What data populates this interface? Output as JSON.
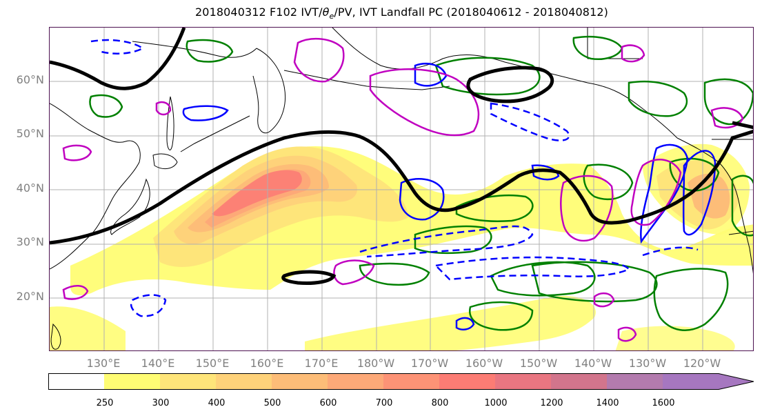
{
  "title": {
    "prefix": "2018040312 F102 IVT/",
    "theta_symbol": "θ",
    "theta_subscript": "e",
    "suffix": "/PV, IVT Landfall PC (2018040612 - 2018040812)"
  },
  "map": {
    "lat_labels": [
      "60°N",
      "50°N",
      "40°N",
      "30°N",
      "20°N"
    ],
    "lon_labels": [
      "130°E",
      "140°E",
      "150°E",
      "160°E",
      "170°E",
      "180°W",
      "170°W",
      "160°W",
      "150°W",
      "140°W",
      "130°W",
      "120°W"
    ],
    "colors": {
      "pv_contour": "#000000",
      "theta_positive": "#008000",
      "theta_negative_dashed": "#0000ff",
      "landfall_pc": "#c000c0",
      "coastline": "#000000",
      "grid": "#b0b0b0"
    }
  },
  "colorbar": {
    "ticks": [
      "250",
      "300",
      "400",
      "500",
      "600",
      "700",
      "800",
      "1000",
      "1200",
      "1400",
      "1600"
    ],
    "levels": [
      0,
      250,
      300,
      400,
      500,
      600,
      700,
      800,
      1000,
      1200,
      1400,
      1600
    ],
    "fill_colors": [
      "#ffffff",
      "#fffd74",
      "#fee57a",
      "#fed27a",
      "#fdbd78",
      "#fda978",
      "#fd9376",
      "#fc7c74",
      "#e97681",
      "#d2758c",
      "#b37bae",
      "#a677c0"
    ],
    "extend": "max"
  }
}
